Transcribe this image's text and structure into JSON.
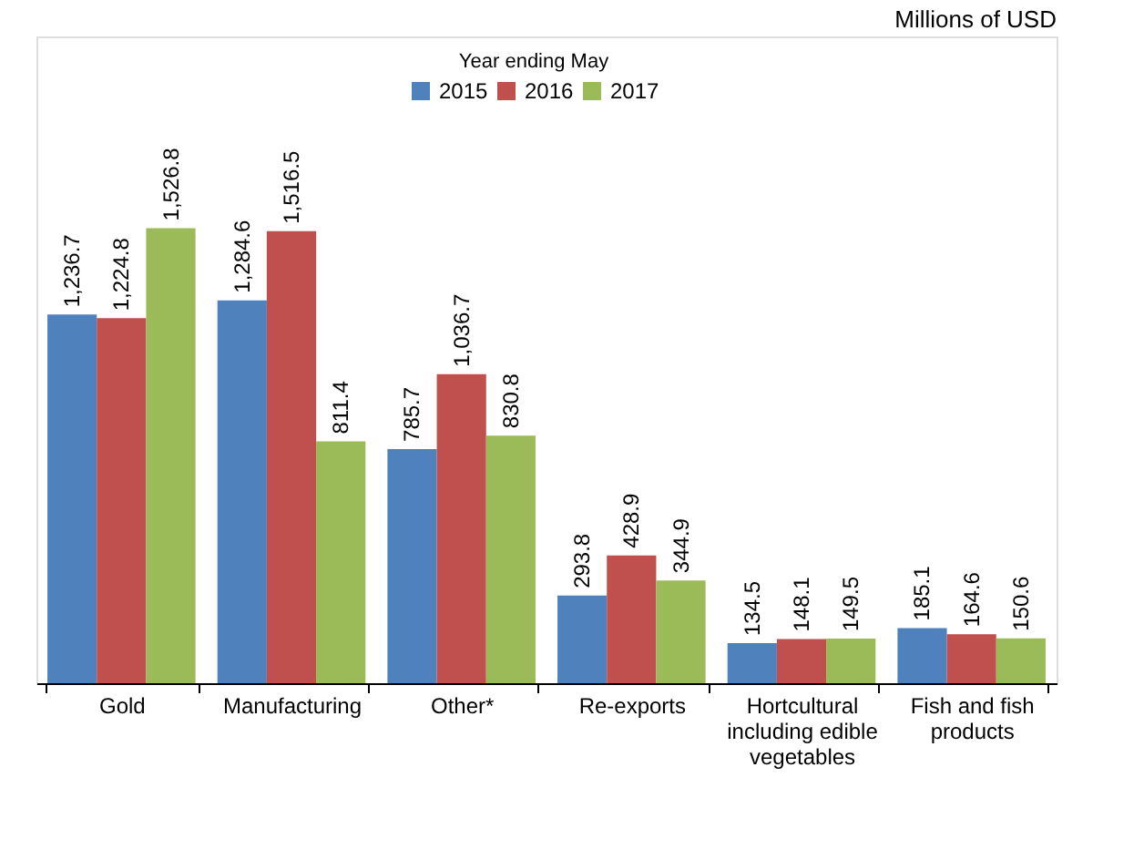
{
  "chart_data": {
    "type": "bar",
    "categories": [
      "Gold",
      "Manufacturing",
      "Other*",
      "Re-exports",
      "Hortcultural including edible vegetables",
      "Fish and fish products"
    ],
    "series": [
      {
        "name": "2015",
        "color": "#4f81bd",
        "values": [
          1236.7,
          1284.6,
          785.7,
          293.8,
          134.5,
          185.1
        ],
        "value_labels": [
          "1,236.7",
          "1,284.6",
          "785.7",
          "293.8",
          "134.5",
          "185.1"
        ]
      },
      {
        "name": "2016",
        "color": "#c0504d",
        "values": [
          1224.8,
          1516.5,
          1036.7,
          428.9,
          148.1,
          164.6
        ],
        "value_labels": [
          "1,224.8",
          "1,516.5",
          "1,036.7",
          "428.9",
          "148.1",
          "164.6"
        ]
      },
      {
        "name": "2017",
        "color": "#9bbb59",
        "values": [
          1526.8,
          811.4,
          830.8,
          344.9,
          149.5,
          150.6
        ],
        "value_labels": [
          "1,526.8",
          "811.4",
          "830.8",
          "344.9",
          "149.5",
          "150.6"
        ]
      }
    ],
    "ylim": [
      0,
      2170
    ],
    "legend_title": "Year ending May",
    "legend": "top",
    "grid": false,
    "tick_labels": "x",
    "annotations": [
      "Millions of USD"
    ]
  }
}
